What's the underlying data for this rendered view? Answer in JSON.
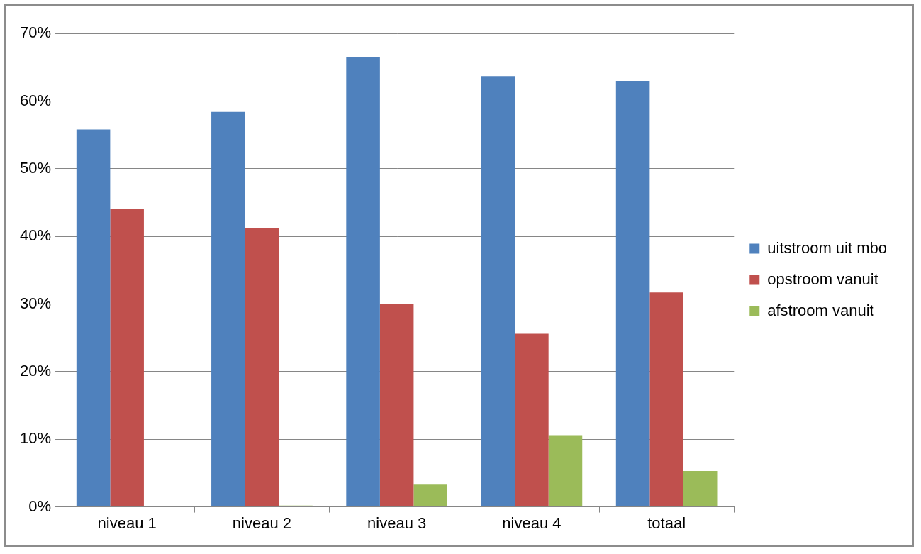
{
  "chart_data": {
    "type": "bar",
    "categories": [
      "niveau 1",
      "niveau 2",
      "niveau 3",
      "niveau 4",
      "totaal"
    ],
    "series": [
      {
        "name": "uitstroom uit mbo",
        "color": "#4f81bd",
        "values": [
          55.8,
          58.4,
          66.5,
          63.7,
          63.0
        ]
      },
      {
        "name": "opstroom vanuit",
        "color": "#c0504d",
        "values": [
          44.1,
          41.2,
          30.0,
          25.6,
          31.7
        ]
      },
      {
        "name": "afstroom vanuit",
        "color": "#9bbb59",
        "values": [
          0,
          0.2,
          3.3,
          10.6,
          5.3
        ]
      }
    ],
    "ylim": [
      0,
      70
    ],
    "yticks": [
      {
        "value": 0,
        "label": "0%"
      },
      {
        "value": 10,
        "label": "10%"
      },
      {
        "value": 20,
        "label": "20%"
      },
      {
        "value": 30,
        "label": "30%"
      },
      {
        "value": 40,
        "label": "40%"
      },
      {
        "value": 50,
        "label": "50%"
      },
      {
        "value": 60,
        "label": "60%"
      },
      {
        "value": 70,
        "label": "70%"
      }
    ],
    "grid": true,
    "legend": "right"
  }
}
